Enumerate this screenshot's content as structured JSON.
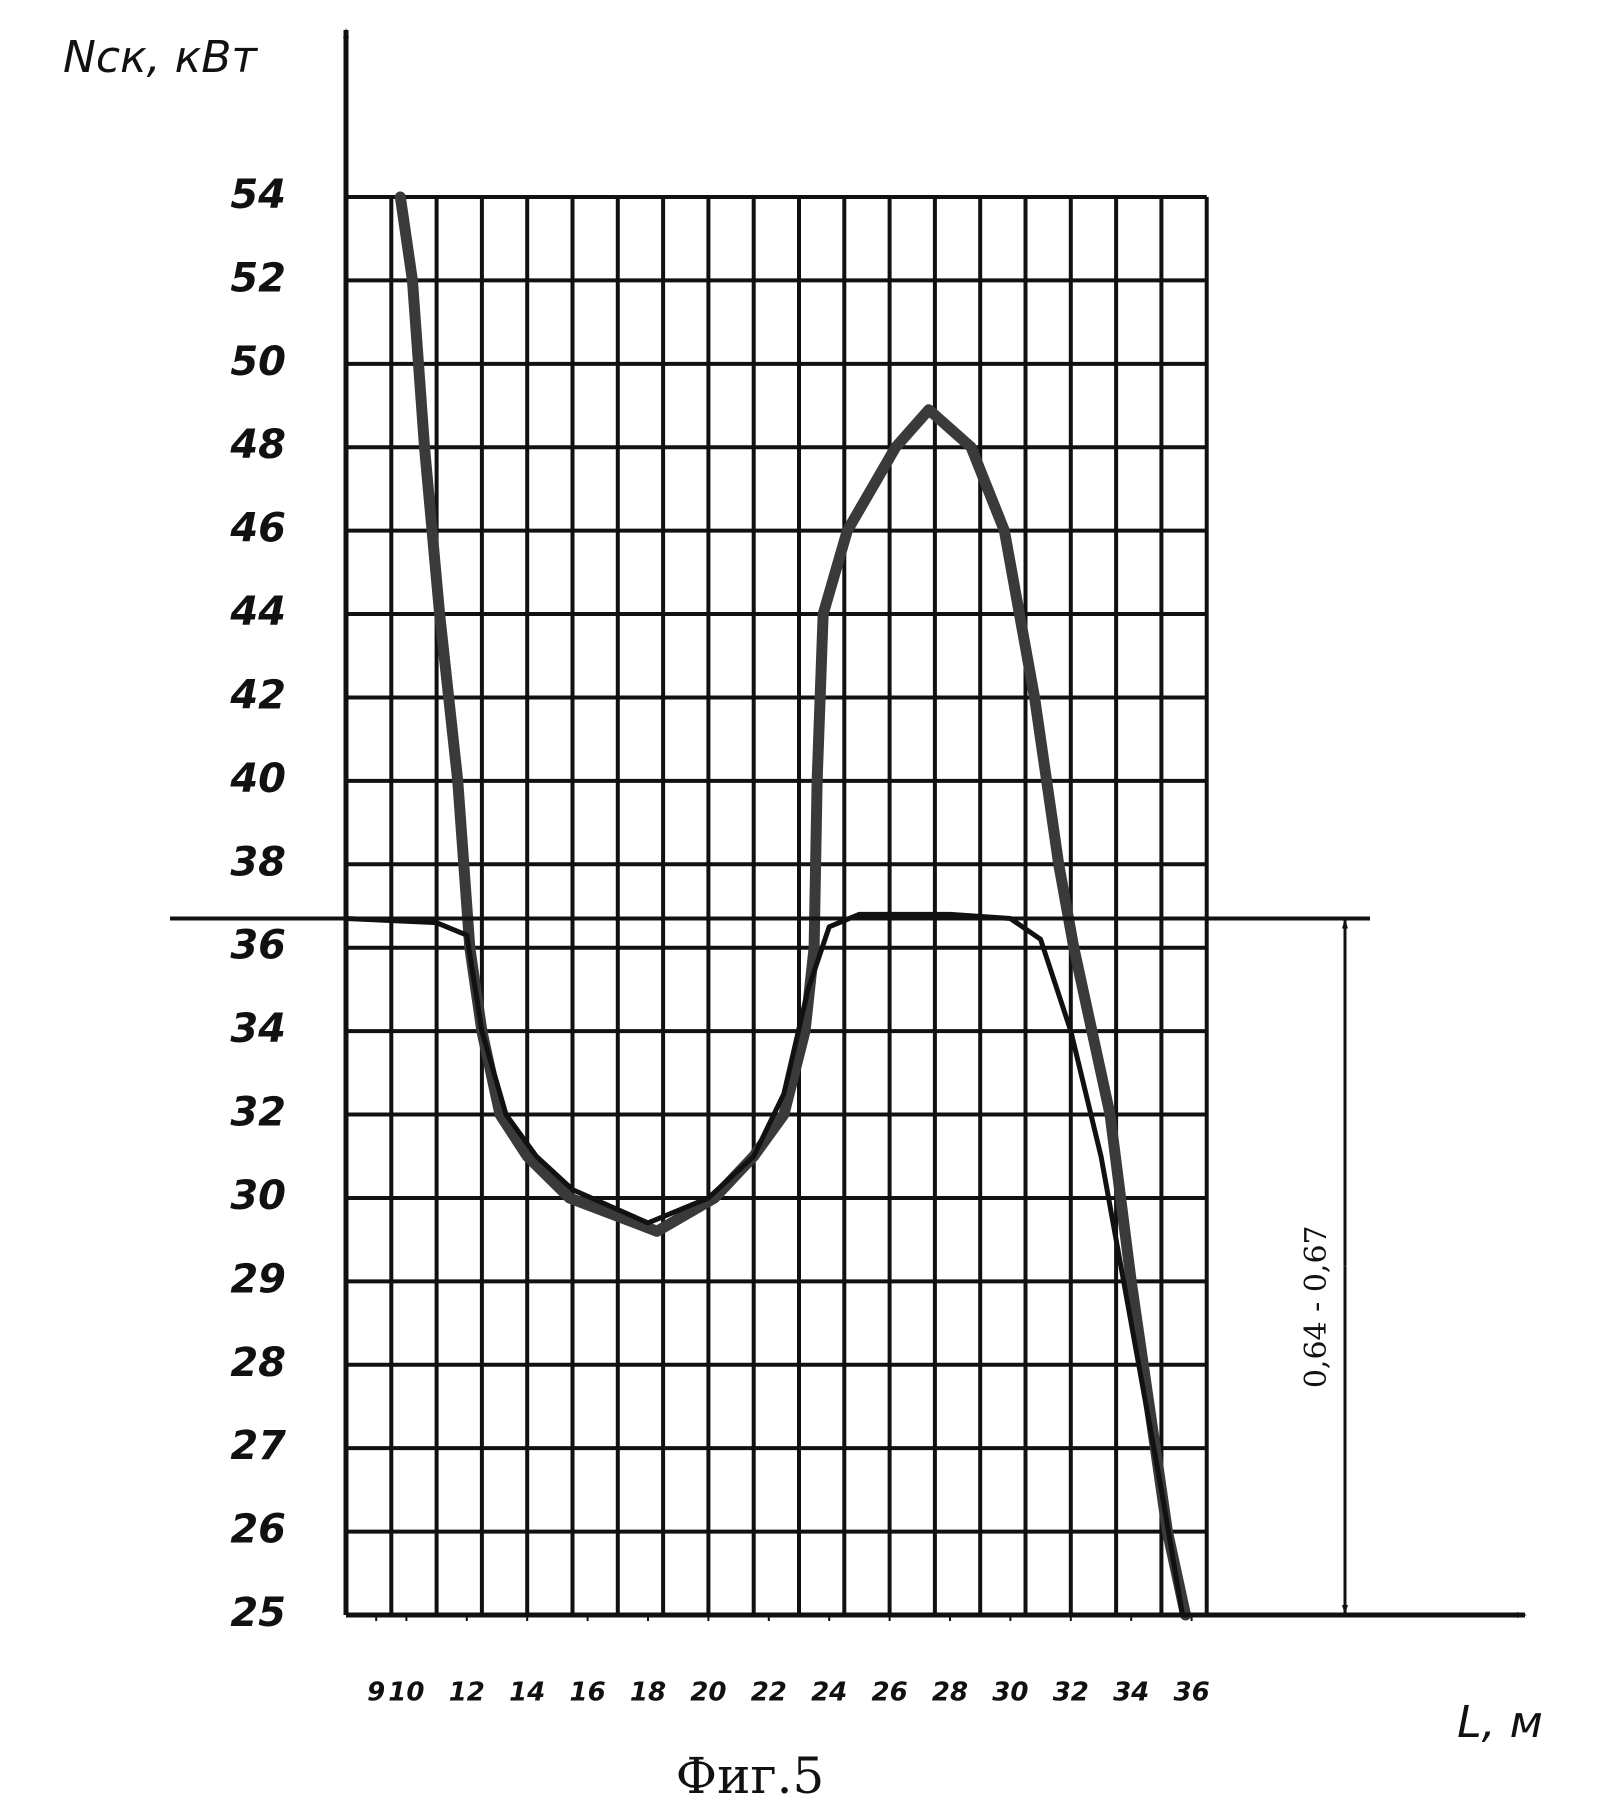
{
  "chart_data": {
    "type": "line",
    "title": "Фиг.5",
    "y_label": "Nск, кВт",
    "x_label": "L, м",
    "annotation": "0,64 - 0,67",
    "ref_line": 36.7,
    "xlim": [
      8,
      36.5
    ],
    "xticks": [
      9,
      10,
      12,
      14,
      16,
      18,
      20,
      22,
      24,
      26,
      28,
      30,
      32,
      34,
      36
    ],
    "ylim": [
      25,
      54
    ],
    "yticks": [
      54,
      52,
      50,
      48,
      46,
      44,
      42,
      40,
      38,
      36,
      34,
      32,
      30,
      29,
      28,
      27,
      26,
      25
    ],
    "grid": true,
    "series": [
      {
        "color": "#3a3a3a",
        "x": [
          9.8,
          10.2,
          10.6,
          11.1,
          11.7,
          12.1,
          12.5,
          13.1,
          14,
          15.4,
          18.3,
          20.2,
          21.5,
          22.5,
          23.2,
          23.5,
          23.6,
          23.8,
          24.6,
          26.2,
          27.3,
          28.7,
          29.8,
          30.8,
          31.6,
          32.1,
          33.3,
          34,
          34.8,
          35.2,
          35.8
        ],
        "values": [
          54,
          52,
          48,
          44,
          40,
          36,
          34,
          32,
          31,
          30,
          29.6,
          30,
          31,
          32,
          34,
          36,
          40,
          44,
          46,
          48,
          48.9,
          48,
          46,
          42,
          38,
          36,
          32,
          29,
          27,
          26,
          25
        ]
      },
      {
        "color": "#111111",
        "x": [
          8,
          11,
          12,
          12.5,
          13.3,
          14.3,
          15.5,
          18,
          20,
          21.5,
          22.5,
          23.3,
          24,
          25,
          28,
          30,
          31,
          32,
          33,
          34,
          35,
          35.7
        ],
        "values": [
          36.7,
          36.6,
          36.3,
          34,
          32,
          31,
          30.2,
          29.7,
          30,
          31,
          32.5,
          35,
          36.5,
          36.8,
          36.8,
          36.7,
          36.2,
          34,
          31,
          28.5,
          26.5,
          25
        ]
      }
    ]
  }
}
